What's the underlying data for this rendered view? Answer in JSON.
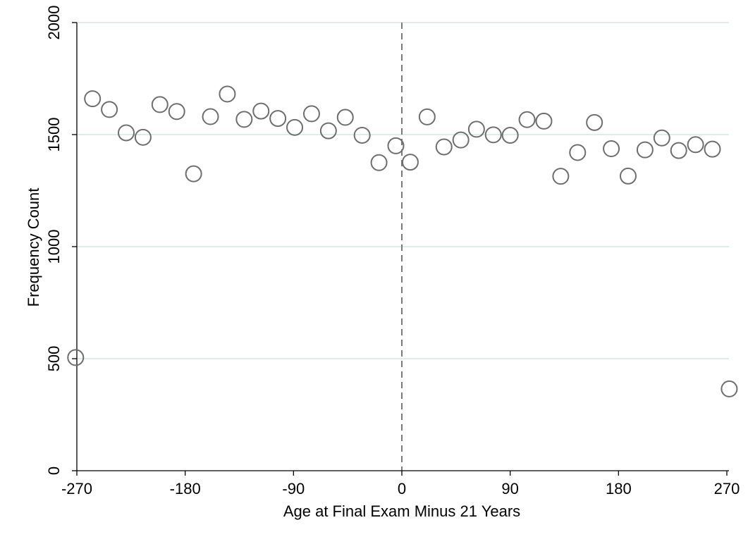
{
  "chart_data": {
    "type": "scatter",
    "title": "",
    "xlabel": "Age at Final Exam Minus 21 Years",
    "ylabel": "Frequency Count",
    "xlim": [
      -270,
      270
    ],
    "ylim": [
      0,
      2000
    ],
    "xticks": [
      -270,
      -180,
      -90,
      0,
      90,
      180,
      270
    ],
    "xtick_labels": [
      "-270",
      "-180",
      "-90",
      "0",
      "90",
      "180",
      "270"
    ],
    "yticks": [
      0,
      500,
      1000,
      1500,
      2000
    ],
    "ytick_labels": [
      "0",
      "500",
      "1000",
      "1500",
      "2000"
    ],
    "grid": "horizontal",
    "reference_line": {
      "x": 0,
      "style": "dashed"
    },
    "marker": "hollow-circle",
    "colors": {
      "marker": "#6e6e6e",
      "grid": "#e1ebea",
      "refline": "#7a7a7a",
      "axis": "#000000"
    },
    "x": [
      -271,
      -257,
      -243,
      -229,
      -215,
      -201,
      -187,
      -173,
      -159,
      -145,
      -131,
      -117,
      -103,
      -89,
      -75,
      -61,
      -47,
      -33,
      -19,
      -5,
      7,
      21,
      35,
      49,
      62,
      76,
      90,
      104,
      118,
      132,
      146,
      160,
      174,
      188,
      202,
      216,
      230,
      244,
      258,
      272
    ],
    "y": [
      505,
      1660,
      1612,
      1508,
      1488,
      1634,
      1603,
      1325,
      1580,
      1681,
      1568,
      1605,
      1572,
      1532,
      1593,
      1517,
      1577,
      1497,
      1375,
      1450,
      1377,
      1579,
      1445,
      1476,
      1524,
      1499,
      1497,
      1567,
      1560,
      1314,
      1420,
      1554,
      1437,
      1315,
      1432,
      1485,
      1429,
      1455,
      1435,
      365
    ]
  }
}
